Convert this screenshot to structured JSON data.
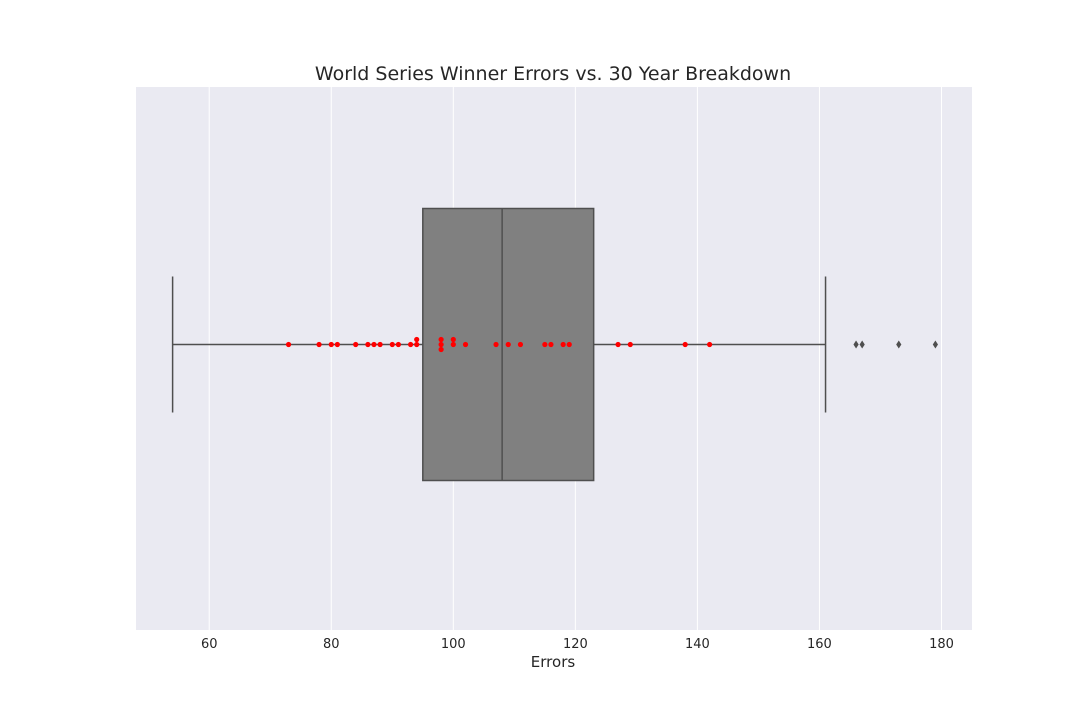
{
  "chart_data": {
    "type": "box",
    "title": "World Series Winner Errors vs. 30 Year Breakdown",
    "xlabel": "Errors",
    "ylabel": "",
    "xlim": [
      48,
      185
    ],
    "xticks": [
      60,
      80,
      100,
      120,
      140,
      160,
      180
    ],
    "grid": true,
    "box": {
      "whisker_low": 54,
      "q1": 95,
      "median": 108,
      "q3": 123,
      "whisker_high": 161,
      "outliers": [
        166,
        167,
        173,
        179
      ]
    },
    "points": [
      73,
      78,
      80,
      81,
      84,
      86,
      87,
      88,
      90,
      91,
      93,
      94,
      94,
      98,
      98,
      98,
      100,
      100,
      102,
      107,
      109,
      111,
      115,
      116,
      118,
      119,
      127,
      129,
      138,
      142
    ],
    "colors": {
      "background": "#eaeaf2",
      "grid": "#ffffff",
      "box_fill": "#808080",
      "box_edge": "#4f4f4f",
      "point": "#ff0000",
      "outlier": "#4f4f4f"
    }
  }
}
